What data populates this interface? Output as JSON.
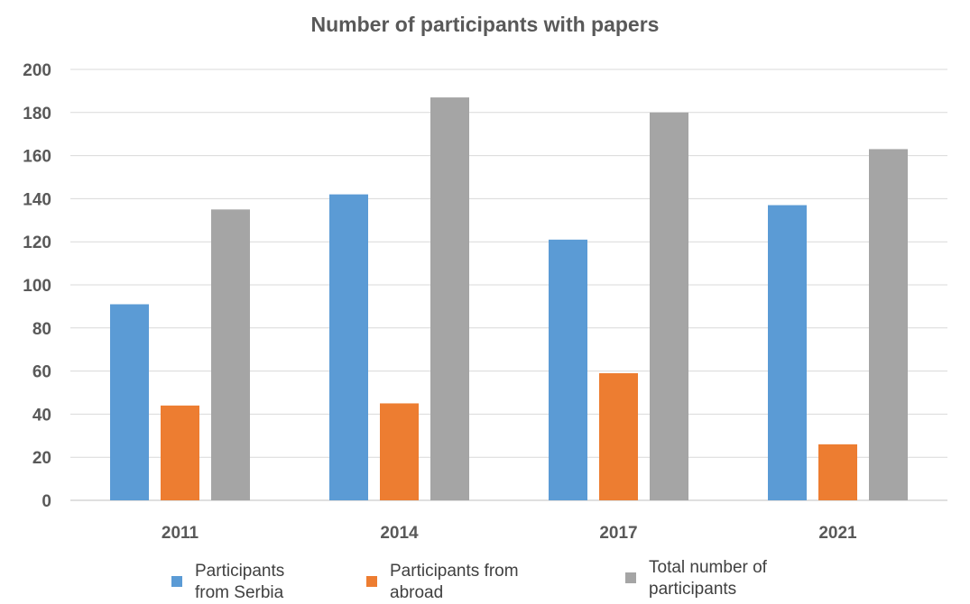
{
  "chart_data": {
    "type": "bar",
    "title": "Number of participants with papers",
    "xlabel": "",
    "ylabel": "",
    "categories": [
      "2011",
      "2014",
      "2017",
      "2021"
    ],
    "ylim": [
      0,
      200
    ],
    "yticks": [
      0,
      20,
      40,
      60,
      80,
      100,
      120,
      140,
      160,
      180,
      200
    ],
    "ytick_labels": [
      "0",
      "20",
      "40",
      "60",
      "80",
      "100",
      "120",
      "140",
      "160",
      "180",
      "200"
    ],
    "grid": true,
    "legend_position": "bottom",
    "series": [
      {
        "name": "Participants\nfrom Serbia",
        "color": "#5B9BD5",
        "values": [
          91,
          142,
          121,
          137
        ]
      },
      {
        "name": "Participants from\nabroad",
        "color": "#ED7D31",
        "values": [
          44,
          45,
          59,
          26
        ]
      },
      {
        "name": "Total number of\nparticipants",
        "color": "#A5A5A5",
        "values": [
          135,
          187,
          180,
          163
        ]
      }
    ]
  }
}
